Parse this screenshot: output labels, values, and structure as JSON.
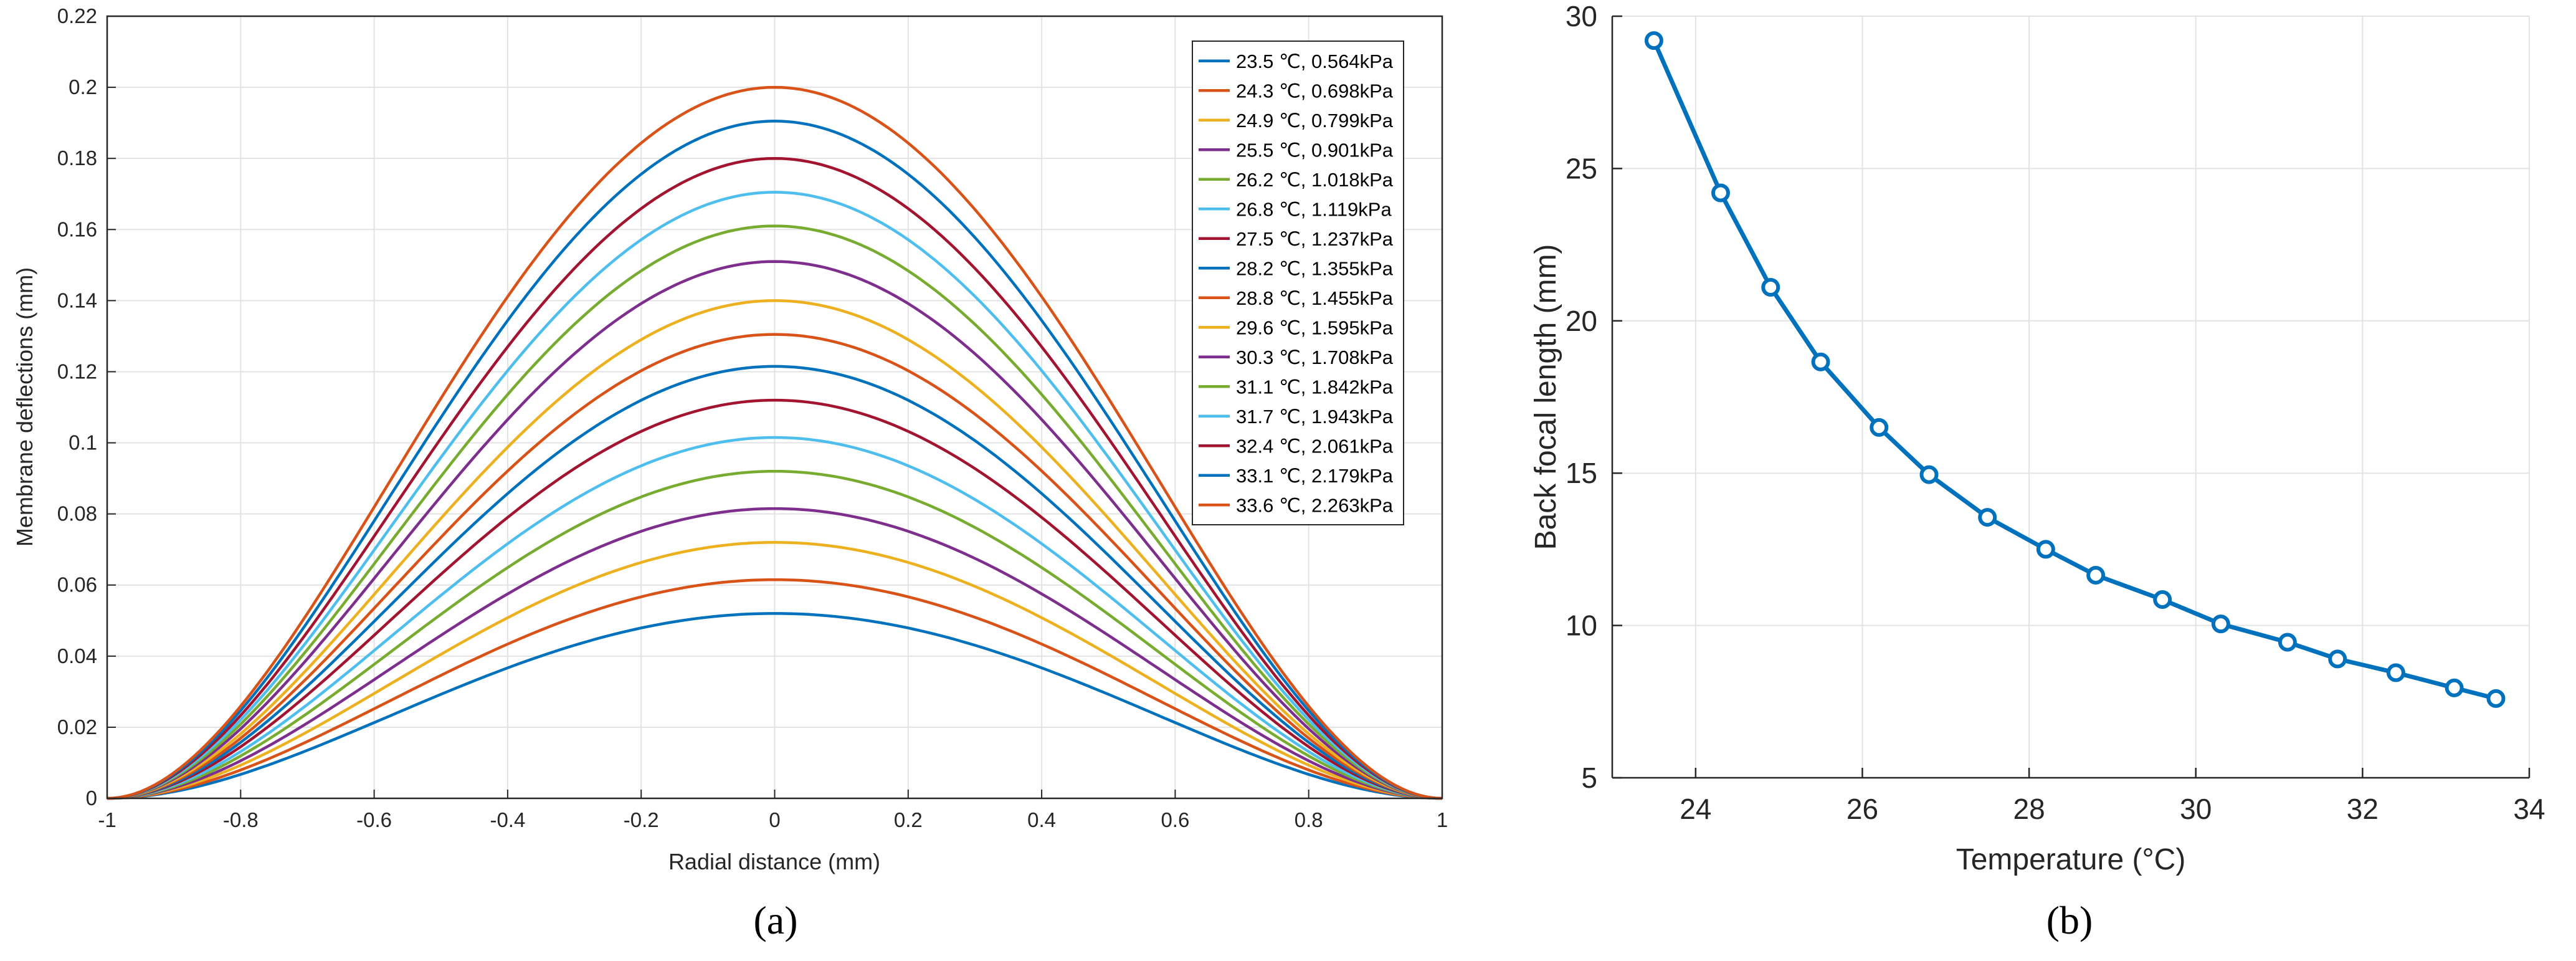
{
  "chart_data": [
    {
      "type": "line",
      "panel_label": "(a)",
      "xlabel": "Radial distance (mm)",
      "ylabel": "Membrane deflections (mm)",
      "xlim": [
        -1,
        1
      ],
      "ylim": [
        0,
        0.22
      ],
      "xticks": [
        "-1",
        "-0.8",
        "-0.6",
        "-0.4",
        "-0.2",
        "0",
        "0.2",
        "0.4",
        "0.6",
        "0.8",
        "1"
      ],
      "yticks": [
        "0",
        "0.02",
        "0.04",
        "0.06",
        "0.08",
        "0.1",
        "0.12",
        "0.14",
        "0.16",
        "0.18",
        "0.2",
        "0.22"
      ],
      "grid": true,
      "legend_position": "top-right",
      "curve_shape": "w(r) = peak * (1 - r^2)^2",
      "series": [
        {
          "name": "23.5 ℃, 0.564kPa",
          "peak": 0.052,
          "color": "#0072BD"
        },
        {
          "name": "24.3 ℃, 0.698kPa",
          "peak": 0.0615,
          "color": "#D95319"
        },
        {
          "name": "24.9 ℃, 0.799kPa",
          "peak": 0.072,
          "color": "#EDB120"
        },
        {
          "name": "25.5 ℃, 0.901kPa",
          "peak": 0.0815,
          "color": "#7E2F8E"
        },
        {
          "name": "26.2 ℃, 1.018kPa",
          "peak": 0.092,
          "color": "#77AC30"
        },
        {
          "name": "26.8 ℃, 1.119kPa",
          "peak": 0.1015,
          "color": "#4DBEEE"
        },
        {
          "name": "27.5 ℃, 1.237kPa",
          "peak": 0.112,
          "color": "#A2142F"
        },
        {
          "name": "28.2 ℃, 1.355kPa",
          "peak": 0.1215,
          "color": "#0072BD"
        },
        {
          "name": "28.8 ℃, 1.455kPa",
          "peak": 0.1305,
          "color": "#D95319"
        },
        {
          "name": "29.6 ℃, 1.595kPa",
          "peak": 0.14,
          "color": "#EDB120"
        },
        {
          "name": "30.3 ℃, 1.708kPa",
          "peak": 0.151,
          "color": "#7E2F8E"
        },
        {
          "name": "31.1 ℃, 1.842kPa",
          "peak": 0.161,
          "color": "#77AC30"
        },
        {
          "name": "31.7 ℃, 1.943kPa",
          "peak": 0.1705,
          "color": "#4DBEEE"
        },
        {
          "name": "32.4 ℃, 2.061kPa",
          "peak": 0.18,
          "color": "#A2142F"
        },
        {
          "name": "33.1 ℃, 2.179kPa",
          "peak": 0.1905,
          "color": "#0072BD"
        },
        {
          "name": "33.6 ℃, 2.263kPa",
          "peak": 0.2,
          "color": "#D95319"
        }
      ]
    },
    {
      "type": "line",
      "panel_label": "(b)",
      "xlabel": "Temperature (°C)",
      "ylabel": "Back focal length (mm)",
      "xlim": [
        23,
        34
      ],
      "ylim": [
        5,
        30
      ],
      "xticks": [
        "24",
        "26",
        "28",
        "30",
        "32",
        "34"
      ],
      "yticks": [
        "5",
        "10",
        "15",
        "20",
        "25",
        "30"
      ],
      "grid": true,
      "marker": "circle",
      "color": "#0072BD",
      "x": [
        23.5,
        24.3,
        24.9,
        25.5,
        26.2,
        26.8,
        27.5,
        28.2,
        28.8,
        29.6,
        30.3,
        31.1,
        31.7,
        32.4,
        33.1,
        33.6
      ],
      "y": [
        29.2,
        24.2,
        21.1,
        18.65,
        16.5,
        14.95,
        13.55,
        12.5,
        11.65,
        10.85,
        10.05,
        9.45,
        8.9,
        8.45,
        7.95,
        7.6
      ]
    }
  ]
}
